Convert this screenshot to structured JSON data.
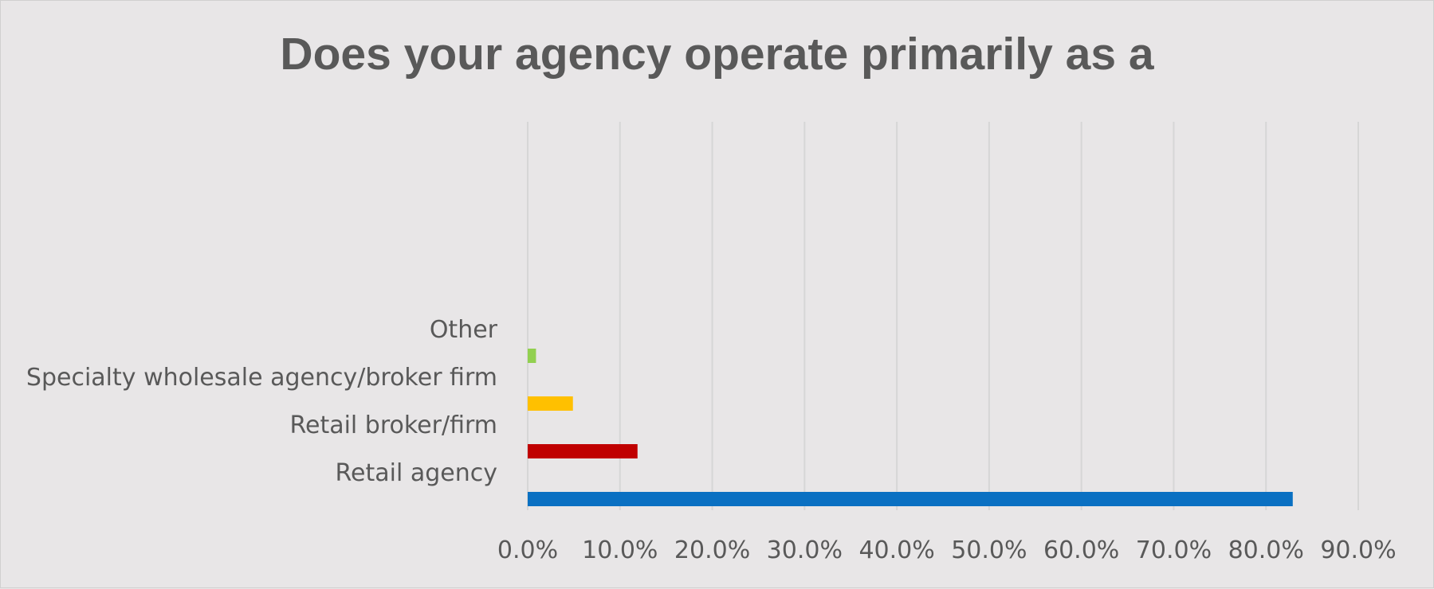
{
  "chart_data": {
    "type": "bar",
    "orientation": "horizontal",
    "title": "Does your agency operate primarily as a",
    "categories": [
      "Retail agency",
      "Retail broker/firm",
      "Specialty wholesale agency/broker firm",
      "Other"
    ],
    "values": [
      82.9,
      11.9,
      4.9,
      0.9
    ],
    "colors": [
      "#0a70c2",
      "#c00000",
      "#ffc000",
      "#92d050"
    ],
    "xlim": [
      0,
      90
    ],
    "xticks": [
      0,
      10,
      20,
      30,
      40,
      50,
      60,
      70,
      80,
      90
    ],
    "xtick_labels": [
      "0.0%",
      "10.0%",
      "20.0%",
      "30.0%",
      "40.0%",
      "50.0%",
      "60.0%",
      "70.0%",
      "80.0%",
      "90.0%"
    ],
    "grid": true,
    "legend": "none",
    "xlabel": "",
    "ylabel": ""
  }
}
